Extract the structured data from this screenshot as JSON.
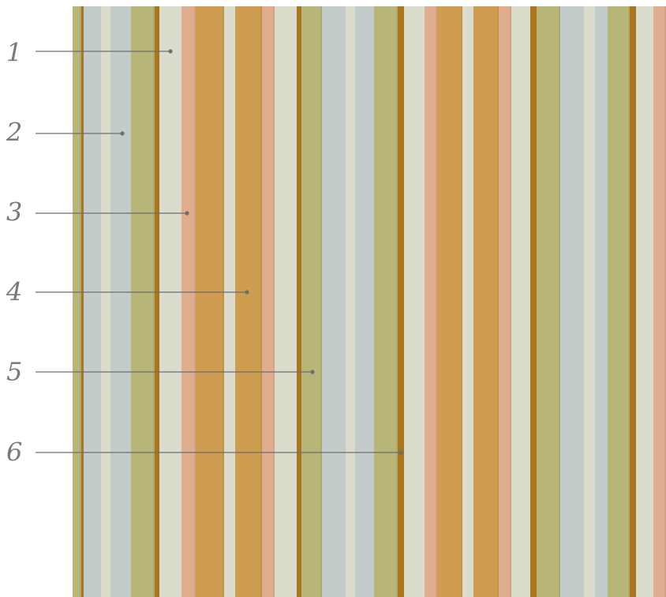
{
  "colors": {
    "olive": "#b7b676",
    "olive_dark": "#a9a865",
    "blue_grey": "#c3cbcb",
    "cream": "#dcdccd",
    "salmon": "#e1ad8f",
    "ochre": "#cf9d4f",
    "brown": "#a9751f",
    "leader_line": "#6e6e6e"
  },
  "callouts": [
    {
      "number": "1",
      "stripe": "cream"
    },
    {
      "number": "2",
      "stripe": "blue_grey"
    },
    {
      "number": "3",
      "stripe": "salmon"
    },
    {
      "number": "4",
      "stripe": "ochre"
    },
    {
      "number": "5",
      "stripe": "olive"
    },
    {
      "number": "6",
      "stripe": "brown"
    }
  ]
}
